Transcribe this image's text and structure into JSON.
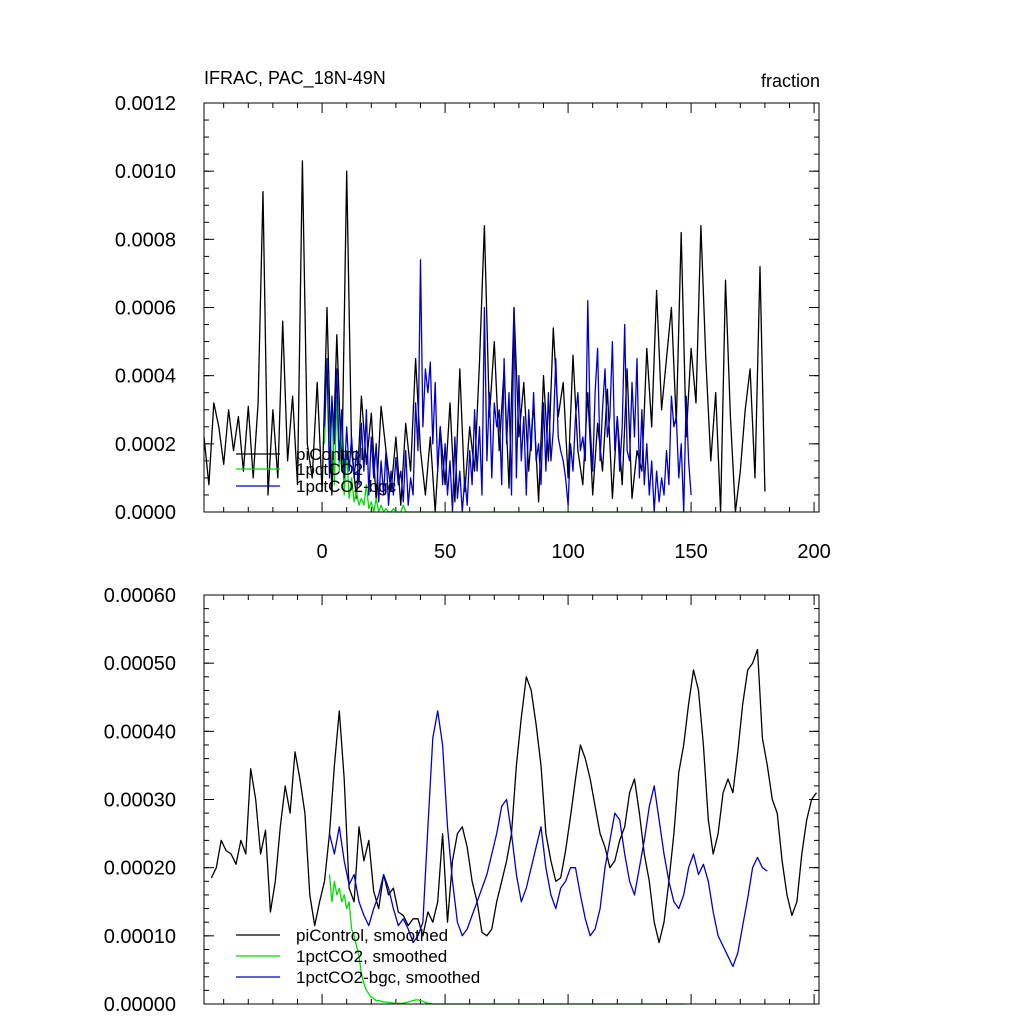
{
  "chart_data": [
    {
      "type": "line",
      "title": "IFRAC, PAC_18N-49N",
      "units": "fraction",
      "xlim": [
        -48,
        202
      ],
      "ylim": [
        0,
        0.0012
      ],
      "x_ticks": [
        0,
        50,
        100,
        150,
        200
      ],
      "x_tick_labels": [
        "0",
        "50",
        "100",
        "150",
        "200"
      ],
      "y_ticks": [
        0,
        0.0002,
        0.0004,
        0.0006,
        0.0008,
        0.001,
        0.0012
      ],
      "y_tick_labels": [
        "0.0000",
        "0.0002",
        "0.0004",
        "0.0006",
        "0.0008",
        "0.0010",
        "0.0012"
      ],
      "legend_position": "lower-left",
      "series": [
        {
          "name": "piControl",
          "color": "#000000",
          "x_start": -48,
          "x_step": 2,
          "values": [
            0.00022,
            8e-05,
            0.00032,
            0.00025,
            0.00014,
            0.0003,
            0.00018,
            0.00028,
            0.00012,
            0.00031,
            0.0001,
            0.00032,
            0.00094,
            5e-05,
            0.0003,
            0.0001,
            0.00056,
            0.00015,
            0.00034,
            8e-05,
            0.00103,
            0.0002,
            0.0001,
            0.00038,
            6e-05,
            0.0006,
            5e-05,
            0.00052,
            0.00012,
            0.001,
            0.00018,
            4e-05,
            0.00034,
            0.00014,
            0.00029,
            3e-05,
            0.00031,
            0.00018,
            6e-05,
            0.00022,
            2e-05,
            0.00026,
            0.00012,
            0.00045,
            0.00018,
            5e-05,
            0.00022,
            0.0,
            0.00025,
            8e-05,
            0.00032,
            3e-05,
            0.00042,
            6e-05,
            0.00025,
            0.00012,
            0.00044,
            0.00084,
            0.00028,
            0.0005,
            0.00018,
            0.00042,
            7e-05,
            0.0006,
            0.00022,
            0.00038,
            0.00012,
            0.00032,
            3e-05,
            0.0004,
            0.00015,
            0.00054,
            0.00028,
            0.00038,
            0.0001,
            0.00046,
            0.00018,
            8e-05,
            0.00035,
            5e-05,
            0.00026,
            0.00012,
            0.00036,
            4e-05,
            0.00028,
            8e-05,
            0.00042,
            4e-05,
            0.00018,
            0.00012,
            0.00048,
            0.00025,
            0.00065,
            0.0003,
            0.00045,
            0.0006,
            0.00026,
            0.00082,
            0.00022,
            0.00048,
            0.00032,
            0.00084,
            0.00045,
            0.00015,
            0.00035,
            0.0,
            0.00068,
            0.00028,
            0.0,
            0.00012,
            0.0003,
            0.00042,
            0.0001,
            0.00072,
            6e-05
          ]
        },
        {
          "name": "1pctCO2",
          "color": "#00dd00",
          "x_start": 1,
          "x_step": 1,
          "values": [
            0.0002,
            0.00045,
            0.00015,
            0.00032,
            8e-05,
            0.00034,
            0.00012,
            0.00025,
            5e-05,
            0.00018,
            4e-05,
            0.0001,
            3e-05,
            6e-05,
            2e-05,
            4e-05,
            2e-05,
            8e-05,
            1e-05,
            3e-05,
            0.0,
            4e-05,
            0.0,
            2e-05,
            0.0,
            1e-05,
            0.0,
            0.0,
            1e-05,
            0.0,
            0.0,
            0.0,
            2e-05,
            0.0,
            0.0,
            0.0,
            0.0,
            0.0,
            0.0,
            0.0,
            0.0,
            0.0,
            0.0,
            0.0,
            0.0,
            0.0,
            0.0,
            0.0,
            0.0,
            0.0,
            0.0,
            0.0,
            0.0,
            0.0,
            0.0,
            0.0,
            0.0,
            0.0,
            0.0,
            0.0,
            0.0,
            0.0,
            0.0,
            0.0,
            0.0,
            0.0,
            0.0,
            0.0,
            0.0,
            0.0,
            0.0,
            0.0,
            0.0,
            0.0,
            0.0,
            0.0,
            0.0,
            0.0,
            0.0,
            0.0,
            0.0,
            0.0,
            0.0,
            0.0,
            0.0,
            0.0,
            0.0,
            0.0,
            0.0,
            0.0,
            0.0,
            0.0,
            0.0,
            0.0,
            0.0,
            0.0,
            0.0,
            0.0,
            0.0,
            0.0,
            0.0,
            0.0,
            0.0,
            0.0,
            0.0,
            0.0,
            0.0,
            0.0,
            0.0,
            0.0,
            0.0,
            0.0,
            0.0,
            0.0,
            0.0,
            0.0,
            0.0,
            0.0,
            0.0,
            0.0,
            0.0,
            0.0,
            0.0,
            0.0,
            0.0,
            0.0,
            0.0,
            0.0,
            0.0,
            0.0,
            0.0,
            0.0,
            0.0,
            0.0,
            0.0,
            0.0,
            0.0,
            0.0,
            0.0,
            0.0,
            0.0,
            0.0,
            0.0,
            0.0,
            0.0,
            0.0,
            0.0,
            0.0,
            0.0,
            0.0
          ]
        },
        {
          "name": "1pctCO2-bgc",
          "color": "#0000cc",
          "x_start": 1,
          "x_step": 1,
          "values": [
            0.00025,
            0.00045,
            0.0001,
            0.00034,
            0.0002,
            0.00042,
            0.00015,
            0.0003,
            0.0001,
            0.00025,
            0.00012,
            0.00022,
            0.0001,
            0.00018,
            8e-05,
            0.00026,
            0.00012,
            0.0003,
            5e-05,
            0.00022,
            0.0001,
            0.0002,
            3e-05,
            0.00015,
            5e-05,
            0.00018,
            2e-05,
            0.00012,
            5e-05,
            0.00016,
            8e-05,
            0.00012,
            3e-05,
            0.00018,
            2e-05,
            0.0001,
            5e-05,
            0.00032,
            0.00018,
            0.00074,
            0.00025,
            0.00042,
            0.00035,
            0.00044,
            0.0002,
            0.00038,
            0.00012,
            0.00025,
            8e-05,
            0.0002,
            5e-05,
            0.00015,
            0.0,
            0.00022,
            4e-05,
            0.00012,
            0.0,
            0.0001,
            2e-05,
            0.00018,
            8e-05,
            0.0003,
            0.00012,
            0.00025,
            5e-05,
            0.0006,
            0.00015,
            0.00035,
            0.0001,
            0.00032,
            0.00025,
            0.0003,
            8e-05,
            0.00045,
            0.0002,
            0.00035,
            5e-05,
            0.0006,
            0.0001,
            0.0004,
            0.00015,
            0.00028,
            5e-05,
            0.0003,
            0.00018,
            0.00035,
            0.00015,
            0.0002,
            8e-05,
            0.00032,
            0.00012,
            0.00035,
            0.00015,
            0.00024,
            0.00045,
            0.00022,
            0.00018,
            0.00015,
            0.0001,
            2e-05,
            0.0002,
            0.00012,
            0.00028,
            0.00035,
            0.00018,
            0.00022,
            0.00015,
            0.00062,
            0.00025,
            0.00012,
            0.00035,
            0.00048,
            0.00015,
            0.0003,
            0.00042,
            0.00022,
            0.00028,
            0.0005,
            0.00018,
            0.00028,
            0.00012,
            0.00025,
            0.00055,
            0.00018,
            0.00015,
            0.00038,
            0.00022,
            0.00045,
            0.0001,
            0.0003,
            8e-05,
            0.0002,
            5e-05,
            0.00015,
            0.0,
            0.00012,
            3e-05,
            0.0001,
            5e-05,
            0.00018,
            8e-05,
            0.00034,
            0.00025,
            0.00028,
            0.0001,
            0.0002,
            0.0,
            0.00034,
            0.00015,
            5e-05
          ]
        }
      ]
    },
    {
      "type": "line",
      "xlim": [
        -48,
        202
      ],
      "ylim": [
        0,
        0.0006
      ],
      "x_ticks": [
        0,
        50,
        100,
        150,
        200
      ],
      "y_ticks": [
        0,
        0.0001,
        0.0002,
        0.0003,
        0.0004,
        0.0005,
        0.0006
      ],
      "y_tick_labels": [
        "0.00000",
        "0.00010",
        "0.00020",
        "0.00030",
        "0.00040",
        "0.00050",
        "0.00060"
      ],
      "legend_position": "lower-left",
      "series": [
        {
          "name": "piControl, smoothed",
          "color": "#000000",
          "x_start": -45,
          "x_step": 2,
          "values": [
            0.000185,
            0.0002,
            0.00024,
            0.000225,
            0.00022,
            0.000205,
            0.00024,
            0.00022,
            0.000345,
            0.0003,
            0.00022,
            0.000255,
            0.000135,
            0.00018,
            0.00026,
            0.00032,
            0.00028,
            0.00037,
            0.00033,
            0.00028,
            0.00016,
            0.000115,
            0.00015,
            0.00018,
            0.00025,
            0.00035,
            0.00043,
            0.00033,
            0.00017,
            0.00015,
            0.00026,
            0.00021,
            0.00024,
            0.000165,
            0.00014,
            0.00019,
            0.00016,
            0.00017,
            0.000135,
            0.00013,
            0.000115,
            0.000125,
            0.000125,
            0.0001,
            0.000135,
            0.00012,
            0.00015,
            0.00025,
            0.00012,
            0.00021,
            0.00025,
            0.00026,
            0.00023,
            0.00018,
            0.00015,
            0.000105,
            0.0001,
            0.00011,
            0.00015,
            0.00018,
            0.00021,
            0.00025,
            0.00035,
            0.00042,
            0.00048,
            0.00046,
            0.00041,
            0.00035,
            0.00025,
            0.00021,
            0.00018,
            0.000185,
            0.000225,
            0.000275,
            0.00033,
            0.00038,
            0.00036,
            0.00033,
            0.00029,
            0.00025,
            0.00023,
            0.0002,
            0.00021,
            0.00024,
            0.00026,
            0.00031,
            0.00033,
            0.00028,
            0.00022,
            0.00018,
            0.00012,
            9e-05,
            0.00012,
            0.00018,
            0.00025,
            0.00034,
            0.00038,
            0.00044,
            0.00049,
            0.00046,
            0.00038,
            0.00027,
            0.00022,
            0.00025,
            0.00031,
            0.00033,
            0.00031,
            0.00037,
            0.00044,
            0.00049,
            0.0005,
            0.00052,
            0.00039,
            0.00035,
            0.0003,
            0.00028,
            0.00021,
            0.00016,
            0.00013,
            0.00015,
            0.00022,
            0.00027,
            0.0003,
            0.00031
          ]
        },
        {
          "name": "1pctCO2, smoothed",
          "color": "#00dd00",
          "x_start": 3,
          "x_step": 1,
          "values": [
            0.00019,
            0.00015,
            0.00018,
            0.00016,
            0.00017,
            0.00015,
            0.00016,
            0.00014,
            0.00015,
            0.00011,
            0.0001,
            8.5e-05,
            7e-05,
            4.5e-05,
            3e-05,
            2e-05,
            1.5e-05,
            1e-05,
            8e-06,
            5e-06,
            5e-06,
            4e-06,
            3e-06,
            3e-06,
            2e-06,
            2e-06,
            1e-06,
            1e-06,
            1e-06,
            1e-06,
            1e-06,
            2e-06,
            3e-06,
            4e-06,
            5e-06,
            6e-06,
            6e-06,
            5e-06,
            4e-06,
            2e-06,
            1e-06,
            1e-06,
            0.0,
            0.0,
            0.0,
            0.0,
            0.0,
            0.0,
            0.0,
            0.0,
            0.0,
            0.0,
            0.0,
            0.0,
            0.0,
            0.0,
            0.0,
            0.0,
            0.0,
            0.0,
            0.0,
            0.0,
            0.0,
            0.0,
            0.0,
            0.0,
            0.0,
            0.0,
            0.0,
            0.0,
            0.0,
            0.0,
            0.0,
            0.0,
            0.0,
            0.0,
            0.0,
            0.0,
            0.0,
            0.0,
            0.0,
            0.0,
            0.0,
            0.0,
            0.0,
            0.0,
            0.0,
            0.0,
            0.0,
            0.0,
            0.0,
            0.0,
            0.0,
            0.0,
            0.0,
            0.0,
            0.0,
            0.0,
            0.0,
            0.0,
            0.0,
            0.0,
            0.0,
            0.0,
            0.0,
            0.0,
            0.0,
            0.0,
            0.0,
            0.0,
            0.0,
            0.0,
            0.0,
            0.0,
            0.0,
            0.0,
            0.0,
            0.0,
            0.0,
            0.0,
            0.0,
            0.0,
            0.0,
            0.0,
            0.0,
            0.0,
            0.0,
            0.0,
            0.0,
            0.0,
            0.0,
            0.0,
            0.0,
            0.0,
            0.0,
            0.0,
            0.0,
            0.0,
            0.0,
            0.0,
            0.0,
            0.0,
            0.0,
            0.0,
            0.0,
            0.0
          ]
        },
        {
          "name": "1pctCO2-bgc, smoothed",
          "color": "#0000cc",
          "x_start": 3,
          "x_step": 2,
          "values": [
            0.00025,
            0.00022,
            0.00026,
            0.00021,
            0.000175,
            0.00019,
            0.00015,
            0.00013,
            0.000115,
            0.00014,
            0.00016,
            0.00019,
            0.00017,
            0.00014,
            0.000115,
            0.000125,
            0.00011,
            9e-05,
            0.0001,
            0.00012,
            0.00026,
            0.00039,
            0.00043,
            0.00038,
            0.00026,
            0.00018,
            0.00012,
            0.0001,
            0.00011,
            0.00013,
            0.00015,
            0.00017,
            0.00019,
            0.00022,
            0.00025,
            0.00029,
            0.0003,
            0.00025,
            0.00019,
            0.00015,
            0.00017,
            0.0002,
            0.00023,
            0.00026,
            0.0002,
            0.00016,
            0.00014,
            0.00017,
            0.00018,
            0.0002,
            0.0002,
            0.00016,
            0.000125,
            0.0001,
            0.00011,
            0.00014,
            0.0002,
            0.00024,
            0.00028,
            0.00027,
            0.00022,
            0.00018,
            0.00016,
            0.0002,
            0.00024,
            0.00029,
            0.00032,
            0.00027,
            0.00022,
            0.00018,
            0.00015,
            0.00014,
            0.00016,
            0.0002,
            0.00022,
            0.00019,
            0.000205,
            0.00018,
            0.000135,
            0.0001,
            8.5e-05,
            7e-05,
            5.5e-05,
            7.5e-05,
            0.000115,
            0.000155,
            0.0002,
            0.000215,
            0.0002,
            0.000195
          ]
        }
      ]
    }
  ]
}
